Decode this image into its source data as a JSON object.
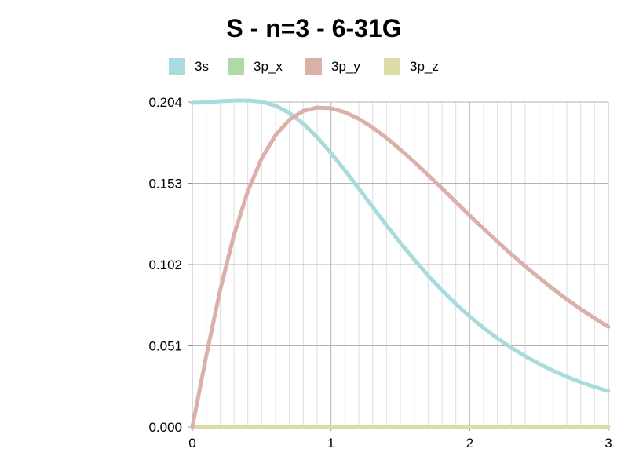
{
  "chart_data": {
    "type": "line",
    "title": "S - n=3 - 6-31G",
    "xlabel": "",
    "ylabel": "",
    "xlim": [
      0,
      3
    ],
    "ylim": [
      0.0,
      0.204
    ],
    "x_ticks": [
      "0",
      "1",
      "2",
      "3"
    ],
    "y_ticks": [
      "0.000",
      "0.051",
      "0.102",
      "0.153",
      "0.204"
    ],
    "grid": true,
    "legend_position": "top",
    "x": [
      0,
      0.1,
      0.2,
      0.3,
      0.4,
      0.5,
      0.6,
      0.7,
      0.8,
      0.9,
      1.0,
      1.1,
      1.2,
      1.3,
      1.4,
      1.5,
      1.6,
      1.7,
      1.8,
      1.9,
      2.0,
      2.1,
      2.2,
      2.3,
      2.4,
      2.5,
      2.6,
      2.7,
      2.8,
      2.9,
      3.0
    ],
    "series": [
      {
        "name": "3s",
        "color": "#a8dcdc",
        "values": [
          0.2035,
          0.2038,
          0.2045,
          0.2049,
          0.205,
          0.2042,
          0.2017,
          0.1971,
          0.1904,
          0.1819,
          0.172,
          0.1611,
          0.1497,
          0.1381,
          0.1267,
          0.1156,
          0.1051,
          0.0951,
          0.0859,
          0.0773,
          0.0694,
          0.0622,
          0.0557,
          0.0498,
          0.0445,
          0.0397,
          0.0354,
          0.0316,
          0.0282,
          0.0252,
          0.0225
        ]
      },
      {
        "name": "3p_x",
        "color": "#b0d9a8",
        "values": [
          0,
          0,
          0,
          0,
          0,
          0,
          0,
          0,
          0,
          0,
          0,
          0,
          0,
          0,
          0,
          0,
          0,
          0,
          0,
          0,
          0,
          0,
          0,
          0,
          0,
          0,
          0,
          0,
          0,
          0,
          0
        ]
      },
      {
        "name": "3p_y",
        "color": "#dbb0a8",
        "values": [
          0.0,
          0.0445,
          0.0857,
          0.1205,
          0.148,
          0.1686,
          0.1832,
          0.1929,
          0.1984,
          0.2005,
          0.2001,
          0.1976,
          0.1935,
          0.188,
          0.1815,
          0.1742,
          0.1664,
          0.1582,
          0.1498,
          0.1413,
          0.1328,
          0.1245,
          0.1164,
          0.1085,
          0.1009,
          0.0937,
          0.0868,
          0.0802,
          0.0741,
          0.0683,
          0.0629
        ]
      },
      {
        "name": "3p_z",
        "color": "#dcdca8",
        "values": [
          0,
          0,
          0,
          0,
          0,
          0,
          0,
          0,
          0,
          0,
          0,
          0,
          0,
          0,
          0,
          0,
          0,
          0,
          0,
          0,
          0,
          0,
          0,
          0,
          0,
          0,
          0,
          0,
          0,
          0,
          0
        ]
      }
    ]
  }
}
